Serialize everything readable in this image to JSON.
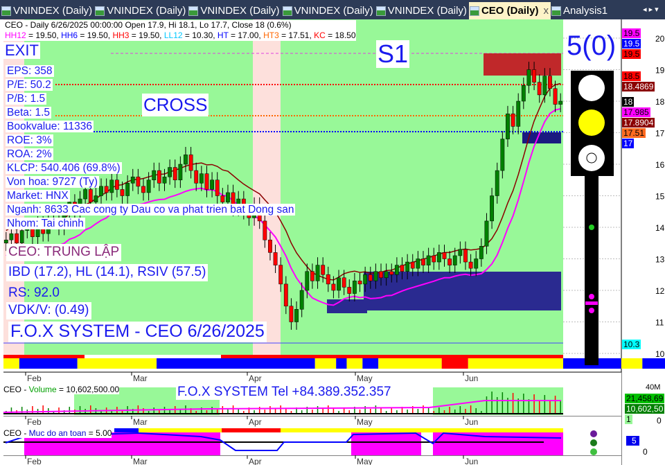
{
  "tabs": [
    {
      "label": "VNINDEX (Daily)"
    },
    {
      "label": "VNINDEX (Daily)"
    },
    {
      "label": "VNINDEX (Daily)"
    },
    {
      "label": "VNINDEX (Daily)"
    },
    {
      "label": "VNINDEX (Daily)"
    },
    {
      "label": "CEO (Daily)",
      "active": true
    },
    {
      "label": "Analysis1"
    }
  ],
  "tab_close": "x",
  "tab_nav": "◂ ▸ ▾",
  "header": {
    "line1": "CEO - Daily 6/26/2025 00:00:00 Open 17.9, Hi 18.1, Lo 17.7, Close 18 (0.6%)",
    "levels": [
      {
        "k": "HH12",
        "v": " = 19.50, ",
        "c": "#ff00ff"
      },
      {
        "k": "HH6",
        "v": " = 19.50, ",
        "c": "#0000ff"
      },
      {
        "k": "HH3",
        "v": " = 19.50, ",
        "c": "#ff0000"
      },
      {
        "k": "LL12",
        "v": " = 10.30, ",
        "c": "#00c8ff"
      },
      {
        "k": "HT",
        "v": "  = 17.00, ",
        "c": "#0000ff"
      },
      {
        "k": "HT3",
        "v": "  = 17.51, ",
        "c": "#ff6600"
      },
      {
        "k": "KC",
        "v": " = 18.50",
        "c": "#ff0000"
      }
    ]
  },
  "overlay": {
    "exit": "EXIT",
    "s1": "S1",
    "cross": "CROSS",
    "score": "5(0)",
    "fundamentals": [
      "EPS: 358",
      "P/E: 50.2",
      "P/B: 1.5",
      "Beta: 1.5",
      "Bookvalue: 11336",
      "ROE: 3%",
      "ROA: 2%",
      "KLCP: 540.406 (69.8%)",
      "Von hoa: 9727 (Ty)",
      "Market: HNX",
      "Nganh: 8633 Cac cong ty Dau co va phat trien bat Dong san",
      "Nhom: Tai chinh"
    ],
    "status": "CEO: TRUNG LẬP",
    "ibd": "IBD (17.2), HL (14.1), RSIV (57.5)",
    "rs": "RS: 92.0",
    "vdk": "VDK/V:  (0.49)",
    "system": "F.O.X SYSTEM - CEO 6/26/2025"
  },
  "price_axis": {
    "ticks": [
      20,
      19,
      18,
      17,
      16,
      15,
      14,
      13,
      12,
      11,
      10
    ]
  },
  "price_labels": [
    {
      "v": "19.5",
      "bg": "#ff00ff",
      "fg": "#000"
    },
    {
      "v": "19.5",
      "bg": "#0000ff",
      "fg": "#fff"
    },
    {
      "v": "19.5",
      "bg": "#ff0000",
      "fg": "#000"
    },
    {
      "v": "18.5",
      "bg": "#ff0000",
      "fg": "#000"
    },
    {
      "v": "18.4869",
      "bg": "#8b0000",
      "fg": "#fff"
    },
    {
      "v": "18",
      "bg": "#000",
      "fg": "#fff"
    },
    {
      "v": "17.985",
      "bg": "#ff00ff",
      "fg": "#000"
    },
    {
      "v": "17.8904",
      "bg": "#8b0000",
      "fg": "#fff"
    },
    {
      "v": "17.51",
      "bg": "#ff6a20",
      "fg": "#000"
    },
    {
      "v": "17",
      "bg": "#0000ff",
      "fg": "#fff"
    },
    {
      "v": "10.3",
      "bg": "#00ffff",
      "fg": "#000"
    }
  ],
  "months": [
    "Feb",
    "Mar",
    "Apr",
    "May",
    "Jun"
  ],
  "volume": {
    "title": "CEO - ",
    "name": "Volume",
    "value": " = 10,602,500.00",
    "banner": "F.O.X SYSTEM Tel +84.389.352.357",
    "axis_top": "40M",
    "axis_zero": "0",
    "label1": "21,458,69",
    "label2": "10,602,50",
    "label3": "1"
  },
  "safety": {
    "title": "CEO - ",
    "name": "Muc do an toan",
    "value": " = 5.00",
    "axis_zero": "0",
    "marker": "5"
  },
  "colors": {
    "green_bg": "#98f898",
    "pink_bg": "#fde0dc",
    "up": "#008000",
    "down": "#ff0000"
  },
  "chart_data": {
    "type": "candlestick",
    "ylim": [
      10,
      20
    ],
    "close": [
      13.6,
      13.8,
      13.5,
      13.9,
      14.0,
      13.7,
      14.1,
      13.8,
      14.2,
      14.3,
      14.0,
      14.4,
      14.8,
      14.5,
      14.9,
      15.2,
      14.8,
      15.0,
      15.3,
      15.1,
      15.5,
      15.2,
      15.0,
      15.4,
      15.6,
      15.3,
      15.1,
      15.5,
      15.8,
      15.4,
      15.6,
      15.9,
      15.5,
      16.0,
      16.3,
      15.8,
      15.4,
      15.7,
      15.2,
      15.5,
      15.0,
      14.8,
      15.1,
      14.6,
      14.9,
      14.5,
      14.3,
      14.7,
      14.2,
      13.6,
      13.2,
      12.8,
      12.2,
      11.5,
      11.0,
      11.4,
      12.0,
      12.6,
      12.3,
      12.8,
      12.5,
      12.2,
      12.0,
      12.4,
      12.1,
      11.9,
      12.3,
      12.2,
      12.5,
      12.3,
      12.6,
      12.4,
      12.6,
      12.5,
      12.8,
      12.6,
      12.9,
      12.7,
      13.0,
      12.8,
      13.1,
      12.9,
      13.2,
      13.0,
      12.8,
      13.1,
      13.3,
      12.9,
      12.7,
      13.0,
      13.4,
      14.2,
      15.0,
      15.8,
      16.8,
      17.6,
      17.2,
      18.0,
      18.5,
      19.0,
      18.6,
      18.2,
      18.8,
      18.4,
      17.9,
      18.0
    ]
  },
  "signal_band": [
    {
      "c": "#ffff00",
      "n": 3
    },
    {
      "c": "#0000ff",
      "n": 11
    },
    {
      "c": "#ffff00",
      "n": 15
    },
    {
      "c": "#0000ff",
      "n": 30
    },
    {
      "c": "#ffff00",
      "n": 4
    },
    {
      "c": "#0000ff",
      "n": 2
    },
    {
      "c": "#ffff00",
      "n": 3
    },
    {
      "c": "#0000ff",
      "n": 3
    },
    {
      "c": "#ffff00",
      "n": 12
    },
    {
      "c": "#ff0000",
      "n": 5
    },
    {
      "c": "#ffff00",
      "n": 18
    },
    {
      "c": "#0000ff",
      "n": 11
    },
    {
      "c": "#ffff00",
      "n": 4
    },
    {
      "c": "#0000ff",
      "n": 8
    },
    {
      "c": "#ffff00",
      "n": 12
    }
  ]
}
